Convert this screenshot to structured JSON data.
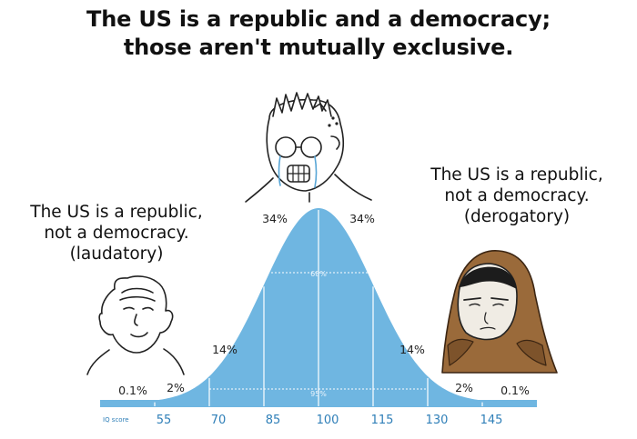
{
  "title": {
    "line1": "The US is a republic and a democracy;",
    "line2": "those aren't mutually exclusive."
  },
  "left_caption": {
    "line1": "The US is a republic,",
    "line2": "not a democracy.",
    "line3": "(laudatory)"
  },
  "right_caption": {
    "line1": "The US is a republic,",
    "line2": "not a democracy.",
    "line3": "(derogatory)"
  },
  "chart_data": {
    "type": "area",
    "title": "",
    "xlabel": "IQ score",
    "x": [
      55,
      70,
      85,
      100,
      115,
      130,
      145
    ],
    "xlim": [
      40,
      160
    ],
    "mean": 100,
    "sd": 15,
    "region_labels": [
      "0.1%",
      "2%",
      "14%",
      "34%",
      "34%",
      "14%",
      "2%",
      "0.1%"
    ],
    "inner_labels": [
      "68%",
      "95%"
    ],
    "color": "#6fb6e1"
  },
  "characters": {
    "left": "bald-wojak-icon",
    "middle": "crying-soyjak-icon",
    "right": "hooded-doomer-icon"
  }
}
